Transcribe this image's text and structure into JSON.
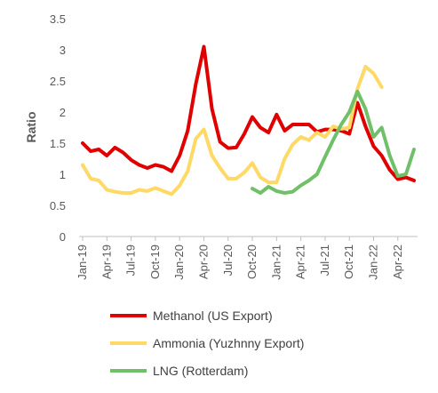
{
  "chart_data": {
    "type": "line",
    "ylabel": "Ratio",
    "ylim": [
      0,
      3.5
    ],
    "yticks": [
      "0",
      "0.5",
      "1",
      "1.5",
      "2",
      "2.5",
      "3",
      "3.5"
    ],
    "x": [
      "Jan-19",
      "Feb-19",
      "Mar-19",
      "Apr-19",
      "May-19",
      "Jun-19",
      "Jul-19",
      "Aug-19",
      "Sep-19",
      "Oct-19",
      "Nov-19",
      "Dec-19",
      "Jan-20",
      "Feb-20",
      "Mar-20",
      "Apr-20",
      "May-20",
      "Jun-20",
      "Jul-20",
      "Aug-20",
      "Sep-20",
      "Oct-20",
      "Nov-20",
      "Dec-20",
      "Jan-21",
      "Feb-21",
      "Mar-21",
      "Apr-21",
      "May-21",
      "Jun-21",
      "Jul-21",
      "Aug-21",
      "Sep-21",
      "Oct-21",
      "Nov-21",
      "Dec-21",
      "Jan-22",
      "Feb-22",
      "Mar-22",
      "Apr-22",
      "May-22",
      "Jun-22"
    ],
    "xtick_labels": [
      "Jan-19",
      "Apr-19",
      "Jul-19",
      "Oct-19",
      "Jan-20",
      "Apr-20",
      "Jul-20",
      "Oct-20",
      "Jan-21",
      "Apr-21",
      "Jul-21",
      "Oct-21",
      "Jan-22",
      "Apr-22"
    ],
    "grid": false,
    "legend_position": "bottom",
    "series": [
      {
        "name": "Methanol (US Export)",
        "color": "#e00000",
        "values": [
          1.5,
          1.37,
          1.4,
          1.3,
          1.43,
          1.35,
          1.23,
          1.15,
          1.1,
          1.15,
          1.12,
          1.05,
          1.3,
          1.7,
          2.45,
          3.05,
          2.05,
          1.52,
          1.42,
          1.43,
          1.65,
          1.92,
          1.75,
          1.67,
          1.96,
          1.7,
          1.8,
          1.8,
          1.8,
          1.68,
          1.72,
          1.72,
          1.7,
          1.65,
          2.15,
          1.77,
          1.45,
          1.3,
          1.07,
          0.92,
          0.95,
          0.9
        ]
      },
      {
        "name": "Ammonia (Yuzhnny Export)",
        "color": "#ffd966",
        "values": [
          1.15,
          0.93,
          0.9,
          0.75,
          0.72,
          0.7,
          0.7,
          0.75,
          0.73,
          0.78,
          0.73,
          0.68,
          0.82,
          1.05,
          1.57,
          1.72,
          1.3,
          1.1,
          0.93,
          0.93,
          1.03,
          1.18,
          0.95,
          0.87,
          0.87,
          1.25,
          1.48,
          1.6,
          1.55,
          1.67,
          1.6,
          1.77,
          1.73,
          1.75,
          2.37,
          2.73,
          2.62,
          2.4,
          null,
          null,
          null,
          null
        ]
      },
      {
        "name": "LNG (Rotterdam)",
        "color": "#70c06a",
        "values": [
          null,
          null,
          null,
          null,
          null,
          null,
          null,
          null,
          null,
          null,
          null,
          null,
          null,
          null,
          null,
          null,
          null,
          null,
          null,
          null,
          null,
          0.77,
          0.7,
          0.8,
          0.73,
          0.7,
          0.72,
          0.82,
          0.9,
          1.0,
          1.28,
          1.55,
          1.8,
          2.0,
          2.33,
          2.05,
          1.6,
          1.75,
          1.3,
          0.97,
          1.0,
          1.4
        ]
      }
    ]
  }
}
